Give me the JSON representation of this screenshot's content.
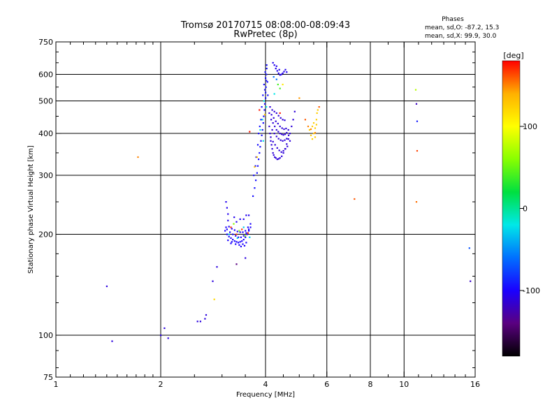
{
  "chart_data": {
    "type": "scatter",
    "title": "Tromsø 20170715 08:08:00-08:09:43",
    "subtitle": "RwPretec (8p)",
    "xlabel": "Frequency [MHz]",
    "ylabel": "Stationary phase Virtual Height [km]",
    "x_scale": "log",
    "y_scale": "log",
    "xlim": [
      1,
      16
    ],
    "ylim": [
      75,
      750
    ],
    "x_ticks": [
      {
        "value": 1,
        "label": "1"
      },
      {
        "value": 2,
        "label": "2"
      },
      {
        "value": 4,
        "label": "4"
      },
      {
        "value": 6,
        "label": "6"
      },
      {
        "value": 8,
        "label": "8"
      },
      {
        "value": 10,
        "label": "10"
      },
      {
        "value": 16,
        "label": "16"
      }
    ],
    "x_gridlines": [
      2,
      4,
      6,
      8,
      10
    ],
    "y_ticks": [
      {
        "value": 75,
        "label": "75"
      },
      {
        "value": 100,
        "label": "100"
      },
      {
        "value": 200,
        "label": "200"
      },
      {
        "value": 300,
        "label": "300"
      },
      {
        "value": 400,
        "label": "400"
      },
      {
        "value": 500,
        "label": "500"
      },
      {
        "value": 600,
        "label": "600"
      },
      {
        "value": 750,
        "label": "750"
      }
    ],
    "y_gridlines": [
      100,
      200,
      300,
      400,
      500,
      600
    ],
    "grid": true,
    "info_heading": "Phases",
    "info_lines": [
      "mean, sd,O: -87.2, 15.3",
      "mean, sd,X:  99.9, 30.0"
    ],
    "colorbar": {
      "label": "[deg]",
      "range": [
        -180,
        180
      ],
      "ticks": [
        {
          "value": 100,
          "label": "100"
        },
        {
          "value": 0,
          "label": "0"
        },
        {
          "value": -100,
          "label": "-100"
        }
      ],
      "colors": [
        "#000000",
        "#5a0080",
        "#1a00ff",
        "#0070ff",
        "#00e8e8",
        "#00e040",
        "#88ff00",
        "#ffff00",
        "#ffb000",
        "#ff0000"
      ]
    },
    "point_groups": [
      {
        "phase": -110,
        "points": [
          [
            1.4,
            140
          ],
          [
            1.45,
            96
          ],
          [
            2.0,
            100
          ],
          [
            2.05,
            105
          ],
          [
            2.1,
            98
          ],
          [
            2.55,
            110
          ],
          [
            2.6,
            110
          ],
          [
            2.68,
            112
          ],
          [
            2.7,
            115
          ],
          [
            2.82,
            145
          ],
          [
            2.9,
            160
          ],
          [
            3.5,
            170
          ]
        ]
      },
      {
        "phase": 150,
        "points": [
          [
            1.72,
            340
          ]
        ]
      },
      {
        "phase": 120,
        "points": [
          [
            2.85,
            128
          ]
        ]
      },
      {
        "phase": -140,
        "points": [
          [
            3.3,
            163
          ]
        ]
      },
      {
        "phase": -105,
        "points": [
          [
            3.08,
            250
          ],
          [
            3.1,
            240
          ],
          [
            3.12,
            230
          ],
          [
            3.12,
            220
          ],
          [
            3.25,
            225
          ],
          [
            3.3,
            218
          ],
          [
            3.38,
            222
          ],
          [
            3.46,
            222
          ],
          [
            3.52,
            228
          ],
          [
            3.58,
            228
          ]
        ]
      },
      {
        "phase": -100,
        "points": [
          [
            3.06,
            205
          ],
          [
            3.1,
            200
          ],
          [
            3.14,
            197
          ],
          [
            3.18,
            195
          ],
          [
            3.22,
            193
          ],
          [
            3.26,
            191
          ],
          [
            3.3,
            190
          ],
          [
            3.34,
            189
          ],
          [
            3.38,
            190
          ],
          [
            3.42,
            191
          ],
          [
            3.46,
            193
          ],
          [
            3.5,
            196
          ],
          [
            3.54,
            200
          ],
          [
            3.58,
            205
          ],
          [
            3.62,
            210
          ],
          [
            3.1,
            207
          ],
          [
            3.16,
            203
          ],
          [
            3.22,
            200
          ],
          [
            3.28,
            198
          ],
          [
            3.34,
            196
          ],
          [
            3.4,
            196
          ],
          [
            3.46,
            198
          ],
          [
            3.52,
            202
          ],
          [
            3.58,
            207
          ],
          [
            3.08,
            210
          ],
          [
            3.14,
            211
          ],
          [
            3.2,
            208
          ],
          [
            3.26,
            206
          ],
          [
            3.32,
            204
          ],
          [
            3.38,
            203
          ],
          [
            3.44,
            203
          ],
          [
            3.5,
            205
          ],
          [
            3.56,
            210
          ],
          [
            3.62,
            215
          ],
          [
            3.2,
            190
          ],
          [
            3.28,
            187
          ],
          [
            3.36,
            186
          ],
          [
            3.44,
            187
          ],
          [
            3.52,
            189
          ],
          [
            3.12,
            192
          ],
          [
            3.18,
            188
          ],
          [
            3.4,
            184
          ],
          [
            3.48,
            185
          ]
        ]
      },
      {
        "phase": 170,
        "points": [
          [
            3.18,
            210
          ],
          [
            3.3,
            200
          ],
          [
            3.42,
            207
          ],
          [
            3.56,
            202
          ]
        ]
      },
      {
        "phase": 60,
        "points": [
          [
            3.24,
            215
          ],
          [
            3.36,
            205
          ],
          [
            3.5,
            198
          ]
        ]
      },
      {
        "phase": -30,
        "points": [
          [
            3.14,
            200
          ],
          [
            3.32,
            195
          ],
          [
            3.46,
            210
          ],
          [
            3.6,
            196
          ]
        ]
      },
      {
        "phase": -95,
        "points": [
          [
            3.68,
            260
          ],
          [
            3.72,
            275
          ],
          [
            3.75,
            290
          ],
          [
            3.78,
            305
          ],
          [
            3.8,
            320
          ],
          [
            3.82,
            335
          ],
          [
            3.84,
            350
          ],
          [
            3.86,
            365
          ],
          [
            3.88,
            380
          ],
          [
            3.9,
            395
          ],
          [
            3.92,
            410
          ],
          [
            3.94,
            430
          ],
          [
            3.95,
            450
          ],
          [
            3.97,
            470
          ],
          [
            3.98,
            490
          ],
          [
            4.0,
            510
          ],
          [
            4.0,
            530
          ],
          [
            4.01,
            550
          ],
          [
            4.02,
            575
          ],
          [
            4.02,
            600
          ],
          [
            4.03,
            625
          ],
          [
            4.03,
            640
          ],
          [
            3.99,
            610
          ],
          [
            4.0,
            585
          ],
          [
            3.96,
            560
          ],
          [
            3.98,
            540
          ],
          [
            3.93,
            520
          ],
          [
            3.9,
            480
          ],
          [
            3.88,
            440
          ],
          [
            3.85,
            420
          ],
          [
            3.82,
            400
          ],
          [
            3.8,
            370
          ],
          [
            3.76,
            340
          ],
          [
            3.74,
            320
          ],
          [
            3.7,
            300
          ],
          [
            4.05,
            570
          ],
          [
            4.06,
            520
          ]
        ]
      },
      {
        "phase": -20,
        "points": [
          [
            3.86,
            410
          ],
          [
            3.92,
            440
          ],
          [
            3.96,
            500
          ],
          [
            4.02,
            480
          ],
          [
            3.94,
            380
          ],
          [
            4.24,
            525
          ]
        ]
      },
      {
        "phase": 130,
        "points": [
          [
            3.78,
            340
          ],
          [
            3.98,
            455
          ],
          [
            3.72,
            318
          ]
        ]
      },
      {
        "phase": 175,
        "points": [
          [
            3.6,
            405
          ],
          [
            3.84,
            470
          ],
          [
            4.4,
            460
          ]
        ]
      },
      {
        "phase": -112,
        "points": [
          [
            4.1,
            420
          ],
          [
            4.12,
            400
          ],
          [
            4.14,
            380
          ],
          [
            4.16,
            370
          ],
          [
            4.18,
            360
          ],
          [
            4.2,
            350
          ],
          [
            4.22,
            345
          ],
          [
            4.25,
            340
          ],
          [
            4.28,
            338
          ],
          [
            4.32,
            335
          ],
          [
            4.36,
            336
          ],
          [
            4.4,
            338
          ],
          [
            4.45,
            342
          ],
          [
            4.5,
            350
          ],
          [
            4.55,
            360
          ],
          [
            4.6,
            372
          ],
          [
            4.65,
            385
          ],
          [
            4.7,
            400
          ],
          [
            4.75,
            420
          ],
          [
            4.8,
            440
          ],
          [
            4.85,
            465
          ],
          [
            4.15,
            440
          ],
          [
            4.2,
            430
          ],
          [
            4.25,
            420
          ],
          [
            4.3,
            410
          ],
          [
            4.35,
            405
          ],
          [
            4.4,
            400
          ],
          [
            4.45,
            398
          ],
          [
            4.5,
            396
          ],
          [
            4.55,
            398
          ],
          [
            4.6,
            402
          ],
          [
            4.65,
            410
          ],
          [
            4.18,
            410
          ],
          [
            4.24,
            400
          ],
          [
            4.3,
            392
          ],
          [
            4.36,
            386
          ],
          [
            4.42,
            382
          ],
          [
            4.48,
            380
          ],
          [
            4.54,
            382
          ],
          [
            4.6,
            386
          ],
          [
            4.1,
            460
          ],
          [
            4.16,
            455
          ],
          [
            4.22,
            445
          ],
          [
            4.28,
            435
          ],
          [
            4.34,
            428
          ],
          [
            4.4,
            420
          ],
          [
            4.46,
            415
          ],
          [
            4.52,
            412
          ],
          [
            4.58,
            414
          ],
          [
            4.12,
            480
          ],
          [
            4.18,
            470
          ],
          [
            4.24,
            465
          ],
          [
            4.3,
            460
          ],
          [
            4.36,
            452
          ],
          [
            4.42,
            445
          ],
          [
            4.48,
            440
          ],
          [
            4.54,
            438
          ],
          [
            4.14,
            390
          ],
          [
            4.2,
            378
          ],
          [
            4.26,
            370
          ],
          [
            4.32,
            362
          ],
          [
            4.38,
            356
          ],
          [
            4.44,
            352
          ],
          [
            4.5,
            355
          ],
          [
            4.56,
            360
          ],
          [
            4.62,
            366
          ],
          [
            4.66,
            395
          ],
          [
            4.7,
            380
          ]
        ]
      },
      {
        "phase": -105,
        "points": [
          [
            4.2,
            650
          ],
          [
            4.24,
            640
          ],
          [
            4.28,
            625
          ],
          [
            4.32,
            615
          ],
          [
            4.36,
            605
          ],
          [
            4.4,
            598
          ],
          [
            4.44,
            600
          ],
          [
            4.48,
            605
          ],
          [
            4.52,
            612
          ],
          [
            4.56,
            620
          ],
          [
            4.6,
            610
          ],
          [
            4.3,
            635
          ],
          [
            4.38,
            620
          ]
        ]
      },
      {
        "phase": 40,
        "points": [
          [
            4.34,
            560
          ],
          [
            4.4,
            545
          ]
        ]
      },
      {
        "phase": 110,
        "points": [
          [
            4.48,
            560
          ]
        ]
      },
      {
        "phase": -60,
        "points": [
          [
            4.22,
            590
          ],
          [
            4.3,
            580
          ]
        ]
      },
      {
        "phase": 125,
        "points": [
          [
            5.35,
            410
          ],
          [
            5.4,
            395
          ],
          [
            5.45,
            385
          ],
          [
            5.5,
            400
          ],
          [
            5.55,
            415
          ],
          [
            5.6,
            425
          ],
          [
            5.6,
            440
          ],
          [
            5.62,
            460
          ],
          [
            5.65,
            470
          ],
          [
            5.45,
            420
          ],
          [
            5.55,
            390
          ],
          [
            5.5,
            430
          ]
        ]
      },
      {
        "phase": 150,
        "points": [
          [
            5.3,
            420
          ],
          [
            5.4,
            412
          ],
          [
            5.55,
            402
          ]
        ]
      },
      {
        "phase": 160,
        "points": [
          [
            5.2,
            440
          ],
          [
            5.7,
            480
          ]
        ]
      },
      {
        "phase": 145,
        "points": [
          [
            5.0,
            510
          ]
        ]
      },
      {
        "phase": 160,
        "points": [
          [
            7.2,
            255
          ]
        ]
      },
      {
        "phase": 75,
        "points": [
          [
            10.8,
            540
          ]
        ]
      },
      {
        "phase": -120,
        "points": [
          [
            10.85,
            490
          ]
        ]
      },
      {
        "phase": -90,
        "points": [
          [
            10.9,
            435
          ]
        ]
      },
      {
        "phase": 165,
        "points": [
          [
            10.9,
            355
          ]
        ]
      },
      {
        "phase": 155,
        "points": [
          [
            10.85,
            250
          ]
        ]
      },
      {
        "phase": -70,
        "points": [
          [
            15.4,
            182
          ]
        ]
      },
      {
        "phase": -118,
        "points": [
          [
            15.5,
            145
          ]
        ]
      }
    ]
  }
}
